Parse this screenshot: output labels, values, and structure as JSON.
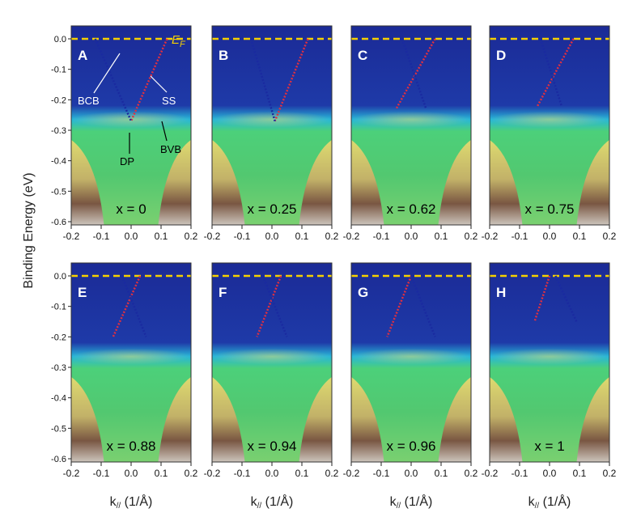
{
  "figure": {
    "ylabel": "Binding Energy (eV)",
    "xlabel_main": "k",
    "xlabel_sub": "//",
    "xlabel_unit": " (1/Å)",
    "xticks": [
      "-0.2",
      "-0.1",
      "0.0",
      "0.1",
      "0.2"
    ],
    "yticks_top": [
      "0.0",
      "-0.1",
      "-0.2",
      "-0.3",
      "-0.4",
      "-0.5",
      "-0.6"
    ],
    "fermi_label": "E",
    "fermi_sub": "F",
    "annotations": {
      "bcb": "BCB",
      "ss": "SS",
      "dp": "DP",
      "bvb": "BVB"
    },
    "colors": {
      "fermi_line": "#f5d000",
      "ss_dots": "#e03040",
      "bcb_dots": "#1a2aa0",
      "background_band": "#1a2c9a"
    }
  },
  "panels": [
    {
      "label": "A",
      "x_text": "x = 0",
      "x_value": 0
    },
    {
      "label": "B",
      "x_text": "x = 0.25",
      "x_value": 0.25
    },
    {
      "label": "C",
      "x_text": "x = 0.62",
      "x_value": 0.62
    },
    {
      "label": "D",
      "x_text": "x = 0.75",
      "x_value": 0.75
    },
    {
      "label": "E",
      "x_text": "x = 0.88",
      "x_value": 0.88
    },
    {
      "label": "F",
      "x_text": "x = 0.94",
      "x_value": 0.94
    },
    {
      "label": "G",
      "x_text": "x = 0.96",
      "x_value": 0.96
    },
    {
      "label": "H",
      "x_text": "x = 1",
      "x_value": 1
    }
  ]
}
